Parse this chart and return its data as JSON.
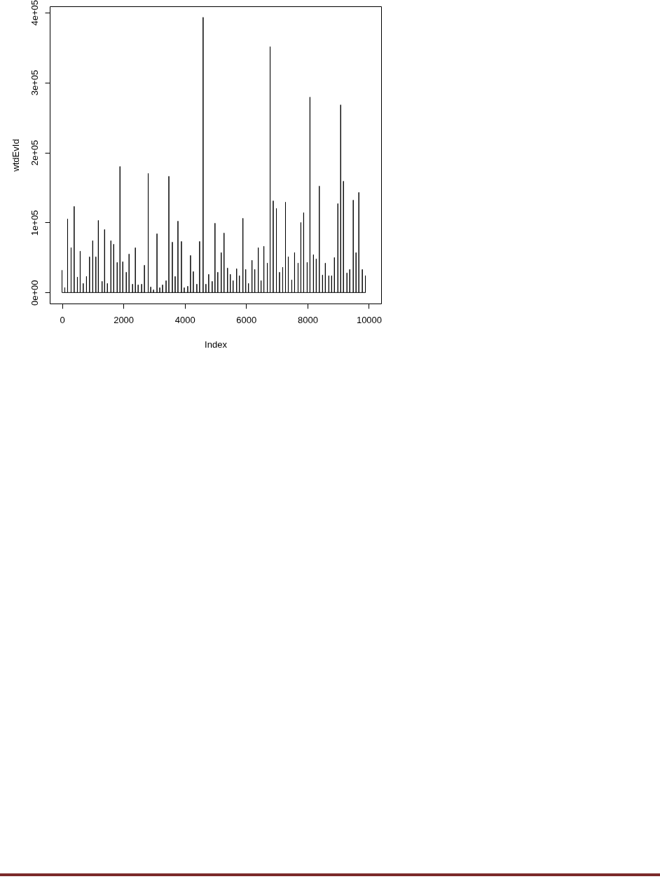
{
  "chart_data": {
    "type": "line",
    "xlabel": "Index",
    "ylabel": "wtdEvId",
    "xlim": [
      -400,
      10400
    ],
    "xticks": [
      0,
      2000,
      4000,
      6000,
      8000,
      10000
    ],
    "ylim": [
      -15700,
      408700
    ],
    "yticks": [
      {
        "value": 0,
        "label": "0e+00"
      },
      {
        "value": 100000,
        "label": "1e+05"
      },
      {
        "value": 200000,
        "label": "2e+05"
      },
      {
        "value": 300000,
        "label": "3e+05"
      },
      {
        "value": 400000,
        "label": "4e+05"
      }
    ],
    "grid": false,
    "marker": "none",
    "line_style": "solid",
    "series": [
      {
        "color": "#000000",
        "x": [
          0,
          0,
          91,
          91,
          91,
          182,
          182,
          182,
          296,
          296,
          296,
          396,
          396,
          396,
          501,
          501,
          501,
          592,
          592,
          592,
          692,
          692,
          692,
          797,
          797,
          797,
          897,
          897,
          897,
          1001,
          1001,
          1001,
          1102,
          1102,
          1102,
          1184,
          1184,
          1184,
          1306,
          1306,
          1306,
          1388,
          1388,
          1388,
          1479,
          1479,
          1479,
          1593,
          1593,
          1593,
          1684,
          1684,
          1684,
          1798,
          1798,
          1798,
          1889,
          1889,
          1889,
          1980,
          1980,
          1980,
          2094,
          2094,
          2094,
          2185,
          2185,
          2185,
          2299,
          2299,
          2299,
          2390,
          2390,
          2390,
          2481,
          2481,
          2481,
          2595,
          2595,
          2595,
          2686,
          2686,
          2686,
          2809,
          2809,
          2809,
          2891,
          2891,
          2891,
          2982,
          2982,
          2982,
          3095,
          3095,
          3095,
          3186,
          3186,
          3186,
          3277,
          3277,
          3277,
          3391,
          3391,
          3391,
          3482,
          3482,
          3482,
          3596,
          3596,
          3596,
          3687,
          3687,
          3687,
          3778,
          3778,
          3778,
          3892,
          3892,
          3892,
          3983,
          3983,
          3983,
          4097,
          4097,
          4097,
          4188,
          4188,
          4188,
          4279,
          4279,
          4279,
          4393,
          4393,
          4393,
          4484,
          4484,
          4484,
          4598,
          4598,
          4598,
          4689,
          4689,
          4689,
          4780,
          4780,
          4780,
          4894,
          4894,
          4894,
          4985,
          4985,
          4985,
          5076,
          5076,
          5076,
          5189,
          5189,
          5189,
          5280,
          5280,
          5280,
          5394,
          5394,
          5394,
          5485,
          5485,
          5485,
          5576,
          5576,
          5576,
          5690,
          5690,
          5690,
          5781,
          5781,
          5781,
          5895,
          5895,
          5895,
          5986,
          5986,
          5986,
          6077,
          6077,
          6077,
          6191,
          6191,
          6191,
          6282,
          6282,
          6282,
          6396,
          6396,
          6396,
          6487,
          6487,
          6487,
          6578,
          6578,
          6578,
          6691,
          6691,
          6691,
          6782,
          6782,
          6782,
          6883,
          6883,
          6883,
          6987,
          6987,
          6987,
          7088,
          7088,
          7088,
          7192,
          7192,
          7192,
          7283,
          7283,
          7283,
          7374,
          7374,
          7374,
          7488,
          7488,
          7488,
          7579,
          7579,
          7579,
          7693,
          7693,
          7693,
          7784,
          7784,
          7784,
          7875,
          7875,
          7875,
          7989,
          7989,
          7989,
          8080,
          8080,
          8080,
          8194,
          8194,
          8194,
          8285,
          8285,
          8285,
          8385,
          8385,
          8385,
          8490,
          8490,
          8490,
          8581,
          8581,
          8581,
          8695,
          8695,
          8695,
          8786,
          8786,
          8786,
          8877,
          8877,
          8877,
          8990,
          8990,
          8990,
          9081,
          9081,
          9081,
          9172,
          9172,
          9172,
          9286,
          9286,
          9286,
          9377,
          9377,
          9377,
          9491,
          9491,
          9491,
          9582,
          9582,
          9582,
          9673,
          9673,
          9673,
          9787,
          9787,
          9787,
          9887,
          9887,
          9887
        ],
        "values": [
          32000,
          0,
          0,
          7000,
          0,
          0,
          105000,
          0,
          0,
          64000,
          0,
          0,
          123000,
          0,
          0,
          22000,
          0,
          0,
          59000,
          0,
          0,
          13000,
          0,
          0,
          23000,
          0,
          0,
          51000,
          0,
          0,
          74000,
          0,
          0,
          51000,
          0,
          0,
          103000,
          0,
          0,
          16000,
          0,
          0,
          90000,
          0,
          0,
          13000,
          0,
          0,
          74000,
          0,
          0,
          69000,
          0,
          0,
          43000,
          0,
          0,
          180000,
          0,
          0,
          44000,
          0,
          0,
          29000,
          0,
          0,
          55000,
          0,
          0,
          12000,
          0,
          0,
          64000,
          0,
          0,
          11000,
          0,
          0,
          12000,
          0,
          0,
          39000,
          0,
          0,
          170000,
          0,
          0,
          8000,
          0,
          0,
          4000,
          0,
          0,
          84000,
          0,
          0,
          7000,
          0,
          0,
          11000,
          0,
          0,
          17000,
          0,
          0,
          166000,
          0,
          0,
          72000,
          0,
          0,
          23000,
          0,
          0,
          102000,
          0,
          0,
          73000,
          0,
          0,
          7000,
          0,
          0,
          9000,
          0,
          0,
          53000,
          0,
          0,
          30000,
          0,
          0,
          12000,
          0,
          0,
          73000,
          0,
          0,
          393000,
          0,
          0,
          12000,
          0,
          0,
          26000,
          0,
          0,
          16000,
          0,
          0,
          99000,
          0,
          0,
          29000,
          0,
          0,
          57000,
          0,
          0,
          85000,
          0,
          0,
          35000,
          0,
          0,
          26000,
          0,
          0,
          17000,
          0,
          0,
          34000,
          0,
          0,
          24000,
          0,
          0,
          106000,
          0,
          0,
          33000,
          0,
          0,
          13000,
          0,
          0,
          46000,
          0,
          0,
          33000,
          0,
          0,
          64000,
          0,
          0,
          17000,
          0,
          0,
          66000,
          0,
          0,
          42000,
          0,
          0,
          351000,
          0,
          0,
          131000,
          0,
          0,
          120000,
          0,
          0,
          29000,
          0,
          0,
          36000,
          0,
          0,
          129000,
          0,
          0,
          51000,
          0,
          0,
          18000,
          0,
          0,
          57000,
          0,
          0,
          42000,
          0,
          0,
          100000,
          0,
          0,
          114000,
          0,
          0,
          43000,
          0,
          0,
          279000,
          0,
          0,
          54000,
          0,
          0,
          48000,
          0,
          0,
          152000,
          0,
          0,
          25000,
          0,
          0,
          42000,
          0,
          0,
          24000,
          0,
          0,
          24000,
          0,
          0,
          50000,
          0,
          0,
          127000,
          0,
          0,
          268000,
          0,
          0,
          159000,
          0,
          0,
          28000,
          0,
          0,
          33000,
          0,
          0,
          132000,
          0,
          0,
          57000,
          0,
          0,
          143000,
          0,
          0,
          33000,
          0,
          0,
          24000,
          0
        ]
      }
    ]
  }
}
